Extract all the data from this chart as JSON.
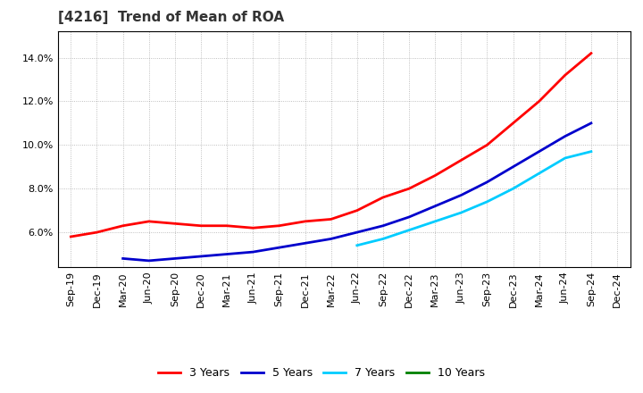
{
  "title": "[4216]  Trend of Mean of ROA",
  "x_labels": [
    "Sep-19",
    "Dec-19",
    "Mar-20",
    "Jun-20",
    "Sep-20",
    "Dec-20",
    "Mar-21",
    "Jun-21",
    "Sep-21",
    "Dec-21",
    "Mar-22",
    "Jun-22",
    "Sep-22",
    "Dec-22",
    "Mar-23",
    "Jun-23",
    "Sep-23",
    "Dec-23",
    "Mar-24",
    "Jun-24",
    "Sep-24",
    "Dec-24"
  ],
  "series": {
    "3 Years": {
      "color": "#FF0000",
      "values": [
        0.058,
        0.06,
        0.063,
        0.065,
        0.064,
        0.063,
        0.063,
        0.062,
        0.063,
        0.065,
        0.066,
        0.07,
        0.076,
        0.08,
        0.086,
        0.093,
        0.1,
        0.11,
        0.12,
        0.132,
        0.142,
        null
      ]
    },
    "5 Years": {
      "color": "#0000CC",
      "values": [
        null,
        null,
        0.048,
        0.047,
        0.048,
        0.049,
        0.05,
        0.051,
        0.053,
        0.055,
        0.057,
        0.06,
        0.063,
        0.067,
        0.072,
        0.077,
        0.083,
        0.09,
        0.097,
        0.104,
        0.11,
        null
      ]
    },
    "7 Years": {
      "color": "#00CCFF",
      "values": [
        null,
        null,
        null,
        null,
        null,
        null,
        null,
        null,
        null,
        null,
        null,
        0.054,
        0.057,
        0.061,
        0.065,
        0.069,
        0.074,
        0.08,
        0.087,
        0.094,
        0.097,
        null
      ]
    },
    "10 Years": {
      "color": "#008000",
      "values": [
        null,
        null,
        null,
        null,
        null,
        null,
        null,
        null,
        null,
        null,
        null,
        null,
        null,
        null,
        null,
        null,
        null,
        null,
        null,
        null,
        null,
        null
      ]
    }
  },
  "ylim": [
    0.044,
    0.152
  ],
  "yticks": [
    0.06,
    0.08,
    0.1,
    0.12,
    0.14
  ],
  "background_color": "#FFFFFF",
  "grid_color": "#999999",
  "title_fontsize": 11,
  "tick_fontsize": 8,
  "legend_fontsize": 9
}
